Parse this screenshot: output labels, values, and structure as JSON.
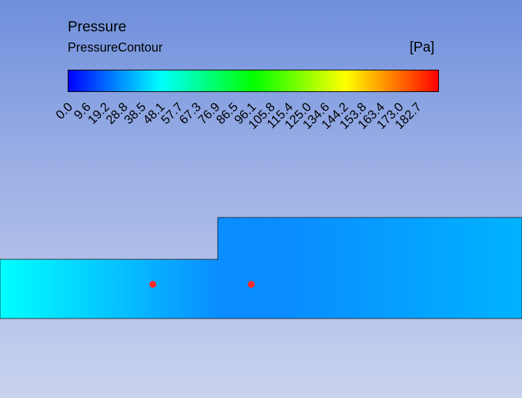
{
  "legend": {
    "title": "Pressure",
    "subtitle": "PressureContour",
    "unit": "[Pa]",
    "ticks": [
      "0.0",
      "9.6",
      "19.2",
      "28.8",
      "38.5",
      "48.1",
      "57.7",
      "67.3",
      "76.9",
      "86.5",
      "96.1",
      "105.8",
      "115.4",
      "125.0",
      "134.6",
      "144.2",
      "153.8",
      "163.4",
      "173.0",
      "182.7"
    ],
    "colormap": [
      "#0000ff",
      "#00ffff",
      "#00ff00",
      "#ffff00",
      "#ff0000"
    ]
  },
  "scene": {
    "domain_colors": {
      "inlet": "#00ffff",
      "mid": "#0a8dff",
      "outlet": "#00b3ff"
    },
    "probe_color": "#ff2a2a"
  }
}
